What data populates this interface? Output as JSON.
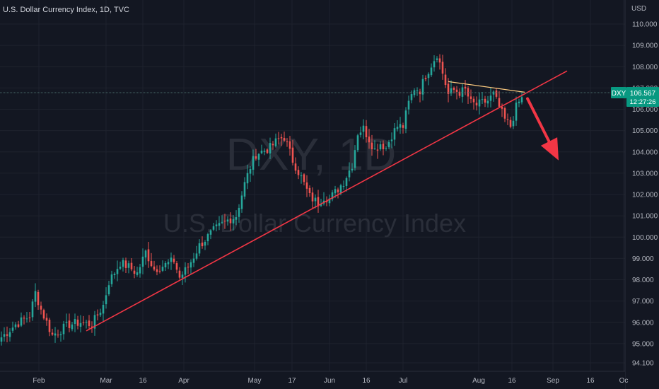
{
  "header": {
    "title": "U.S. Dollar Currency Index, 1D, TVC"
  },
  "watermark": {
    "symbol": "DXY, 1D",
    "name": "U.S. Dollar Currency Index"
  },
  "price_axis": {
    "currency": "USD"
  },
  "price_tag": {
    "symbol": "DXY",
    "price": "106.567",
    "countdown": "12:27:26"
  },
  "colors": {
    "up": "#26a69a",
    "down": "#ef5350",
    "trend": "#f23645",
    "resistance": "#ffcc80",
    "grid": "#1e222d",
    "background": "#131722"
  },
  "chart_data": {
    "type": "candlestick",
    "title": "U.S. Dollar Currency Index, 1D, TVC",
    "ylabel": "USD",
    "ylim": [
      94.0,
      110.6
    ],
    "y_ticks": [
      "110.000",
      "109.000",
      "108.000",
      "107.000",
      "106.000",
      "105.000",
      "104.000",
      "103.000",
      "102.000",
      "101.000",
      "100.000",
      "99.000",
      "98.000",
      "97.000",
      "96.000",
      "95.000",
      "94.100"
    ],
    "x_ticks": [
      "Feb",
      "Mar",
      "16",
      "Apr",
      "May",
      "17",
      "Jun",
      "16",
      "Jul",
      "Aug",
      "16",
      "Sep",
      "16",
      "Oc"
    ],
    "anchors": [
      {
        "i": 0,
        "v": 95.3
      },
      {
        "i": 5,
        "v": 95.9
      },
      {
        "i": 10,
        "v": 96.3
      },
      {
        "i": 12,
        "v": 97.4
      },
      {
        "i": 14,
        "v": 96.6
      },
      {
        "i": 18,
        "v": 95.4
      },
      {
        "i": 24,
        "v": 95.9
      },
      {
        "i": 28,
        "v": 96.0
      },
      {
        "i": 32,
        "v": 95.9
      },
      {
        "i": 36,
        "v": 96.8
      },
      {
        "i": 38,
        "v": 97.9
      },
      {
        "i": 42,
        "v": 98.8
      },
      {
        "i": 45,
        "v": 98.6
      },
      {
        "i": 48,
        "v": 98.3
      },
      {
        "i": 51,
        "v": 99.3
      },
      {
        "i": 54,
        "v": 98.5
      },
      {
        "i": 58,
        "v": 98.7
      },
      {
        "i": 61,
        "v": 98.9
      },
      {
        "i": 63,
        "v": 98.1
      },
      {
        "i": 66,
        "v": 98.6
      },
      {
        "i": 70,
        "v": 99.6
      },
      {
        "i": 75,
        "v": 100.3
      },
      {
        "i": 80,
        "v": 100.8
      },
      {
        "i": 83,
        "v": 101.0
      },
      {
        "i": 86,
        "v": 102.5
      },
      {
        "i": 88,
        "v": 103.3
      },
      {
        "i": 90,
        "v": 103.9
      },
      {
        "i": 95,
        "v": 104.2
      },
      {
        "i": 98,
        "v": 104.6
      },
      {
        "i": 100,
        "v": 104.7
      },
      {
        "i": 103,
        "v": 103.6
      },
      {
        "i": 106,
        "v": 102.8
      },
      {
        "i": 109,
        "v": 101.9
      },
      {
        "i": 112,
        "v": 101.6
      },
      {
        "i": 114,
        "v": 101.9
      },
      {
        "i": 116,
        "v": 101.8
      },
      {
        "i": 118,
        "v": 102.1
      },
      {
        "i": 121,
        "v": 102.6
      },
      {
        "i": 124,
        "v": 103.4
      },
      {
        "i": 126,
        "v": 104.9
      },
      {
        "i": 128,
        "v": 105.1
      },
      {
        "i": 130,
        "v": 104.6
      },
      {
        "i": 132,
        "v": 104.1
      },
      {
        "i": 134,
        "v": 104.4
      },
      {
        "i": 136,
        "v": 104.2
      },
      {
        "i": 138,
        "v": 104.8
      },
      {
        "i": 140,
        "v": 105.2
      },
      {
        "i": 142,
        "v": 105.2
      },
      {
        "i": 144,
        "v": 106.3
      },
      {
        "i": 146,
        "v": 107.0
      },
      {
        "i": 148,
        "v": 106.9
      },
      {
        "i": 150,
        "v": 107.6
      },
      {
        "i": 152,
        "v": 108.1
      },
      {
        "i": 154,
        "v": 108.6
      },
      {
        "i": 156,
        "v": 107.7
      },
      {
        "i": 158,
        "v": 106.7
      },
      {
        "i": 160,
        "v": 106.9
      },
      {
        "i": 162,
        "v": 106.8
      },
      {
        "i": 164,
        "v": 106.9
      },
      {
        "i": 166,
        "v": 106.3
      },
      {
        "i": 168,
        "v": 106.2
      },
      {
        "i": 170,
        "v": 106.3
      },
      {
        "i": 172,
        "v": 106.4
      },
      {
        "i": 174,
        "v": 106.7
      },
      {
        "i": 176,
        "v": 106.1
      },
      {
        "i": 178,
        "v": 105.5
      },
      {
        "i": 180,
        "v": 105.2
      },
      {
        "i": 182,
        "v": 106.1
      },
      {
        "i": 184,
        "v": 106.567
      }
    ],
    "candle_count": 185,
    "last_price": 106.567,
    "drawings": {
      "trendline": {
        "from": {
          "i": 30,
          "v": 95.6
        },
        "to": {
          "i": 200,
          "v": 107.8
        }
      },
      "resistance": {
        "from": {
          "i": 158,
          "v": 107.3
        },
        "to": {
          "i": 185,
          "v": 106.8
        }
      },
      "arrow": {
        "from": {
          "i": 186,
          "v": 106.5
        },
        "to": {
          "i": 197,
          "v": 103.6
        }
      }
    }
  }
}
